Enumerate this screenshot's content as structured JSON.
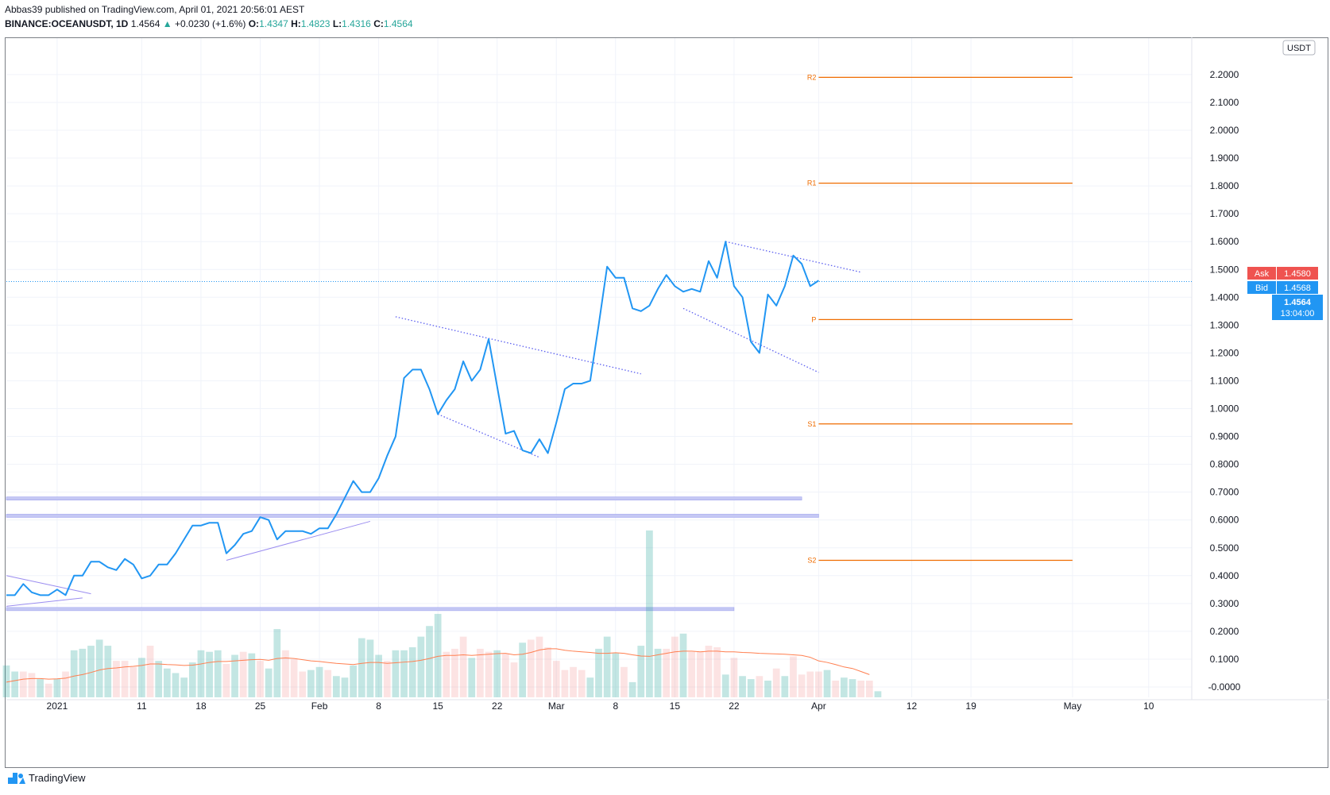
{
  "header": {
    "line1": "Abbas39 published on TradingView.com, April 01, 2021 20:56:01 AEST",
    "symbol": "BINANCE:OCEANUSDT, 1D",
    "last": "1.4564",
    "change_arrow": "▲",
    "change": "+0.0230 (+1.6%)",
    "o_label": "O:",
    "o_value": "1.4347",
    "h_label": "H:",
    "h_value": "1.4823",
    "l_label": "L:",
    "l_value": "1.4316",
    "c_label": "C:",
    "c_value": "1.4564"
  },
  "currency_badge": "USDT",
  "price_tags": {
    "ask_label": "Ask",
    "ask_value": "1.4580",
    "bid_label": "Bid",
    "bid_value": "1.4568",
    "last_value": "1.4564",
    "countdown": "13:04:00"
  },
  "footer": {
    "brand": "TradingView"
  },
  "colors": {
    "line": "#2196f3",
    "pivot": "#ef6c00",
    "vol_up": "#26a69a",
    "vol_down": "#ef5350",
    "trend": "#5b5ff0",
    "zone": "#c5c8f4",
    "ask": "#ef5350",
    "bid": "#2196f3"
  },
  "chart_data": {
    "type": "line",
    "title": "",
    "ylim": [
      -0.03,
      2.45
    ],
    "y_ticks": [
      2.2,
      2.1,
      2.0,
      1.9,
      1.8,
      1.7,
      1.6,
      1.5,
      1.4,
      1.3,
      1.2,
      1.1,
      1.0,
      0.9,
      0.8,
      0.7,
      0.6,
      0.5,
      0.4,
      0.3,
      0.2,
      0.1,
      0.0
    ],
    "y_tick_labels": [
      "2.2000",
      "2.1000",
      "2.0000",
      "1.9000",
      "1.8000",
      "1.7000",
      "1.6000",
      "1.5000",
      "1.4000",
      "1.3000",
      "1.2000",
      "1.1000",
      "1.0000",
      "0.9000",
      "0.8000",
      "0.7000",
      "0.6000",
      "0.5000",
      "0.4000",
      "0.3000",
      "0.2000",
      "0.1000",
      "-0.0000"
    ],
    "x_ticks": [
      {
        "label": "2021",
        "day": 0
      },
      {
        "label": "11",
        "day": 10
      },
      {
        "label": "18",
        "day": 17
      },
      {
        "label": "25",
        "day": 24
      },
      {
        "label": "Feb",
        "day": 31
      },
      {
        "label": "8",
        "day": 38
      },
      {
        "label": "15",
        "day": 45
      },
      {
        "label": "22",
        "day": 52
      },
      {
        "label": "Mar",
        "day": 59
      },
      {
        "label": "8",
        "day": 66
      },
      {
        "label": "15",
        "day": 73
      },
      {
        "label": "22",
        "day": 80
      },
      {
        "label": "Apr",
        "day": 90
      },
      {
        "label": "12",
        "day": 101
      },
      {
        "label": "19",
        "day": 108
      },
      {
        "label": "May",
        "day": 120
      },
      {
        "label": "10",
        "day": 129
      }
    ],
    "x_start_day": -6,
    "x_end_day": 134,
    "series": [
      {
        "name": "OCEANUSDT close",
        "start_day": -6,
        "values": [
          0.33,
          0.33,
          0.37,
          0.34,
          0.33,
          0.33,
          0.35,
          0.33,
          0.4,
          0.4,
          0.45,
          0.45,
          0.43,
          0.42,
          0.46,
          0.44,
          0.39,
          0.4,
          0.44,
          0.44,
          0.48,
          0.53,
          0.58,
          0.58,
          0.59,
          0.59,
          0.48,
          0.51,
          0.55,
          0.56,
          0.61,
          0.6,
          0.53,
          0.56,
          0.56,
          0.56,
          0.55,
          0.57,
          0.57,
          0.62,
          0.68,
          0.74,
          0.7,
          0.7,
          0.75,
          0.83,
          0.9,
          1.11,
          1.14,
          1.14,
          1.07,
          0.98,
          1.03,
          1.07,
          1.17,
          1.1,
          1.14,
          1.25,
          1.08,
          0.91,
          0.92,
          0.85,
          0.84,
          0.89,
          0.84,
          0.95,
          1.07,
          1.09,
          1.09,
          1.1,
          1.3,
          1.51,
          1.47,
          1.47,
          1.36,
          1.35,
          1.37,
          1.43,
          1.48,
          1.44,
          1.42,
          1.43,
          1.42,
          1.53,
          1.47,
          1.6,
          1.44,
          1.4,
          1.24,
          1.2,
          1.41,
          1.37,
          1.44,
          1.55,
          1.52,
          1.44,
          1.46
        ]
      }
    ],
    "volume": {
      "start_day": -6,
      "moving_average_color": "#ff7f50",
      "bars": [
        {
          "v": 0.105,
          "up": true
        },
        {
          "v": 0.085,
          "up": true
        },
        {
          "v": 0.085,
          "up": false
        },
        {
          "v": 0.08,
          "up": false
        },
        {
          "v": 0.06,
          "up": true
        },
        {
          "v": 0.045,
          "up": false
        },
        {
          "v": 0.06,
          "up": true
        },
        {
          "v": 0.085,
          "up": false
        },
        {
          "v": 0.155,
          "up": true
        },
        {
          "v": 0.16,
          "up": true
        },
        {
          "v": 0.17,
          "up": true
        },
        {
          "v": 0.19,
          "up": true
        },
        {
          "v": 0.17,
          "up": true
        },
        {
          "v": 0.12,
          "up": false
        },
        {
          "v": 0.12,
          "up": false
        },
        {
          "v": 0.1,
          "up": false
        },
        {
          "v": 0.13,
          "up": true
        },
        {
          "v": 0.17,
          "up": false
        },
        {
          "v": 0.12,
          "up": true
        },
        {
          "v": 0.095,
          "up": true
        },
        {
          "v": 0.08,
          "up": true
        },
        {
          "v": 0.065,
          "up": true
        },
        {
          "v": 0.115,
          "up": true
        },
        {
          "v": 0.155,
          "up": true
        },
        {
          "v": 0.15,
          "up": true
        },
        {
          "v": 0.155,
          "up": true
        },
        {
          "v": 0.11,
          "up": false
        },
        {
          "v": 0.14,
          "up": true
        },
        {
          "v": 0.15,
          "up": false
        },
        {
          "v": 0.145,
          "up": true
        },
        {
          "v": 0.12,
          "up": false
        },
        {
          "v": 0.095,
          "up": true
        },
        {
          "v": 0.225,
          "up": true
        },
        {
          "v": 0.155,
          "up": false
        },
        {
          "v": 0.125,
          "up": false
        },
        {
          "v": 0.085,
          "up": false
        },
        {
          "v": 0.09,
          "up": true
        },
        {
          "v": 0.1,
          "up": true
        },
        {
          "v": 0.09,
          "up": false
        },
        {
          "v": 0.07,
          "up": true
        },
        {
          "v": 0.065,
          "up": true
        },
        {
          "v": 0.105,
          "up": true
        },
        {
          "v": 0.195,
          "up": true
        },
        {
          "v": 0.19,
          "up": true
        },
        {
          "v": 0.14,
          "up": true
        },
        {
          "v": 0.12,
          "up": false
        },
        {
          "v": 0.155,
          "up": true
        },
        {
          "v": 0.155,
          "up": true
        },
        {
          "v": 0.165,
          "up": true
        },
        {
          "v": 0.2,
          "up": true
        },
        {
          "v": 0.235,
          "up": true
        },
        {
          "v": 0.275,
          "up": true
        },
        {
          "v": 0.15,
          "up": false
        },
        {
          "v": 0.16,
          "up": false
        },
        {
          "v": 0.2,
          "up": false
        },
        {
          "v": 0.13,
          "up": true
        },
        {
          "v": 0.16,
          "up": false
        },
        {
          "v": 0.15,
          "up": false
        },
        {
          "v": 0.155,
          "up": true
        },
        {
          "v": 0.145,
          "up": false
        },
        {
          "v": 0.115,
          "up": false
        },
        {
          "v": 0.18,
          "up": true
        },
        {
          "v": 0.19,
          "up": false
        },
        {
          "v": 0.2,
          "up": false
        },
        {
          "v": 0.165,
          "up": false
        },
        {
          "v": 0.12,
          "up": false
        },
        {
          "v": 0.09,
          "up": false
        },
        {
          "v": 0.1,
          "up": false
        },
        {
          "v": 0.09,
          "up": false
        },
        {
          "v": 0.065,
          "up": true
        },
        {
          "v": 0.16,
          "up": true
        },
        {
          "v": 0.2,
          "up": true
        },
        {
          "v": 0.145,
          "up": true
        },
        {
          "v": 0.1,
          "up": false
        },
        {
          "v": 0.05,
          "up": true
        },
        {
          "v": 0.17,
          "up": true
        },
        {
          "v": 0.55,
          "up": true
        },
        {
          "v": 0.16,
          "up": true
        },
        {
          "v": 0.16,
          "up": false
        },
        {
          "v": 0.2,
          "up": false
        },
        {
          "v": 0.21,
          "up": true
        },
        {
          "v": 0.15,
          "up": false
        },
        {
          "v": 0.15,
          "up": false
        },
        {
          "v": 0.17,
          "up": false
        },
        {
          "v": 0.165,
          "up": false
        },
        {
          "v": 0.075,
          "up": true
        },
        {
          "v": 0.13,
          "up": false
        },
        {
          "v": 0.07,
          "up": true
        },
        {
          "v": 0.06,
          "up": true
        },
        {
          "v": 0.07,
          "up": false
        },
        {
          "v": 0.055,
          "up": true
        },
        {
          "v": 0.095,
          "up": false
        },
        {
          "v": 0.07,
          "up": true
        },
        {
          "v": 0.135,
          "up": false
        },
        {
          "v": 0.075,
          "up": false
        },
        {
          "v": 0.085,
          "up": false
        },
        {
          "v": 0.085,
          "up": false
        },
        {
          "v": 0.09,
          "up": true
        },
        {
          "v": 0.055,
          "up": false
        },
        {
          "v": 0.065,
          "up": true
        },
        {
          "v": 0.06,
          "up": true
        },
        {
          "v": 0.055,
          "up": false
        },
        {
          "v": 0.055,
          "up": false
        },
        {
          "v": 0.02,
          "up": true
        }
      ],
      "ma": [
        0.05,
        0.055,
        0.06,
        0.062,
        0.062,
        0.06,
        0.061,
        0.063,
        0.07,
        0.075,
        0.082,
        0.09,
        0.095,
        0.097,
        0.1,
        0.102,
        0.105,
        0.11,
        0.11,
        0.108,
        0.107,
        0.105,
        0.106,
        0.11,
        0.115,
        0.118,
        0.118,
        0.12,
        0.122,
        0.124,
        0.125,
        0.122,
        0.128,
        0.13,
        0.128,
        0.124,
        0.12,
        0.118,
        0.115,
        0.112,
        0.11,
        0.108,
        0.112,
        0.115,
        0.115,
        0.112,
        0.114,
        0.116,
        0.118,
        0.122,
        0.128,
        0.135,
        0.138,
        0.138,
        0.14,
        0.138,
        0.14,
        0.142,
        0.144,
        0.145,
        0.14,
        0.142,
        0.148,
        0.156,
        0.16,
        0.16,
        0.155,
        0.152,
        0.15,
        0.148,
        0.145,
        0.145,
        0.147,
        0.145,
        0.14,
        0.136,
        0.135,
        0.14,
        0.145,
        0.15,
        0.152,
        0.152,
        0.15,
        0.152,
        0.152,
        0.15,
        0.15,
        0.148,
        0.147,
        0.145,
        0.144,
        0.143,
        0.142,
        0.14,
        0.138,
        0.132,
        0.12,
        0.115,
        0.108,
        0.1,
        0.095,
        0.085,
        0.075
      ]
    },
    "pivots": [
      {
        "label": "R2",
        "value": 2.19,
        "start_day": 90,
        "end_day": 120
      },
      {
        "label": "R1",
        "value": 1.81,
        "start_day": 90,
        "end_day": 120
      },
      {
        "label": "P",
        "value": 1.32,
        "start_day": 90,
        "end_day": 120
      },
      {
        "label": "S1",
        "value": 0.945,
        "start_day": 90,
        "end_day": 120
      },
      {
        "label": "S2",
        "value": 0.455,
        "start_day": 90,
        "end_day": 120
      }
    ],
    "trendlines": [
      {
        "x1": -6,
        "y1": 0.29,
        "x2": 3,
        "y2": 0.32,
        "style": "solid"
      },
      {
        "x1": -6,
        "y1": 0.4,
        "x2": 4,
        "y2": 0.335,
        "style": "solid"
      },
      {
        "x1": 20,
        "y1": 0.455,
        "x2": 37,
        "y2": 0.595,
        "style": "solid"
      },
      {
        "x1": 40,
        "y1": 1.33,
        "x2": 69,
        "y2": 1.125,
        "style": "dotted"
      },
      {
        "x1": 45,
        "y1": 0.98,
        "x2": 57,
        "y2": 0.825,
        "style": "dotted"
      },
      {
        "x1": 74,
        "y1": 1.36,
        "x2": 90,
        "y2": 1.13,
        "style": "dotted"
      },
      {
        "x1": 79,
        "y1": 1.6,
        "x2": 95,
        "y2": 1.49,
        "style": "dotted"
      }
    ],
    "zones": [
      {
        "y": 0.677,
        "start_day": -6,
        "end_day": 88
      },
      {
        "y": 0.615,
        "start_day": -6,
        "end_day": 90
      },
      {
        "y": 0.28,
        "start_day": -6,
        "end_day": 80
      }
    ],
    "last_price_line": 1.4564
  }
}
